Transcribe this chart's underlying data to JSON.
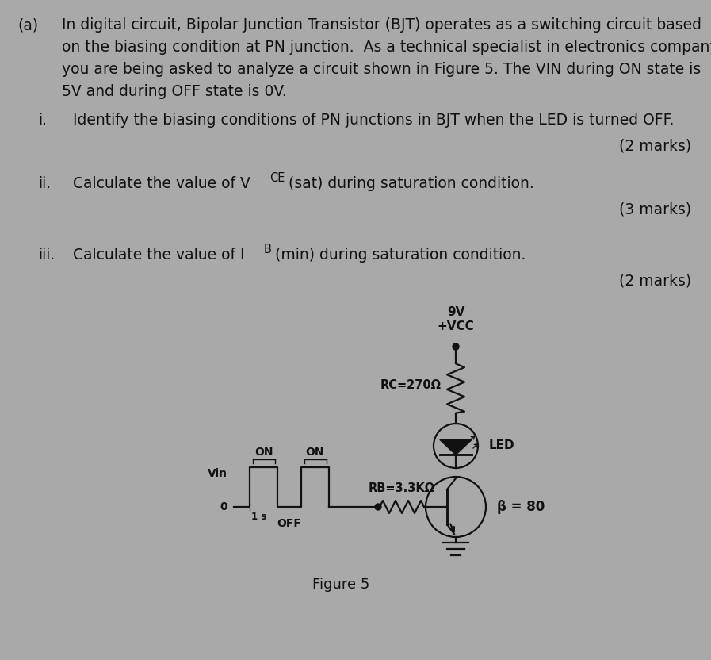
{
  "bg_color": "#a9a9a9",
  "text_color": "#111111",
  "title_label": "(a)",
  "para_line1": "In digital circuit, Bipolar Junction Transistor (BJT) operates as a switching circuit based",
  "para_line2": "on the biasing condition at PN junction.  As a technical specialist in electronics company,",
  "para_line3": "you are being asked to analyze a circuit shown in Figure 5. The VIN during ON state is",
  "para_line4": "5V and during OFF state is 0V.",
  "q1_num": "i.",
  "q1_text": "Identify the biasing conditions of PN junctions in BJT when the LED is turned OFF.",
  "q1_marks": "(2 marks)",
  "q2_num": "ii.",
  "q2_text_pre": "Calculate the value of V",
  "q2_sub": "CE",
  "q2_text_post": "(sat) during saturation condition.",
  "q2_marks": "(3 marks)",
  "q3_num": "iii.",
  "q3_text_pre": "Calculate the value of I",
  "q3_sub": "B",
  "q3_text_post": "(min) during saturation condition.",
  "q3_marks": "(2 marks)",
  "figure_label": "Figure 5",
  "vcc_9v": "9V",
  "vcc_label": "+VCC",
  "rc_label": "RC=270Ω",
  "led_label": "LED",
  "rb_label": "RB=3.3KΩ",
  "beta_label": "β = 80",
  "vin_label": "Vin",
  "on_label": "ON",
  "off_label": "OFF",
  "zero_label": "0",
  "one_s_label": "1 s",
  "circuit_color": "#111111"
}
